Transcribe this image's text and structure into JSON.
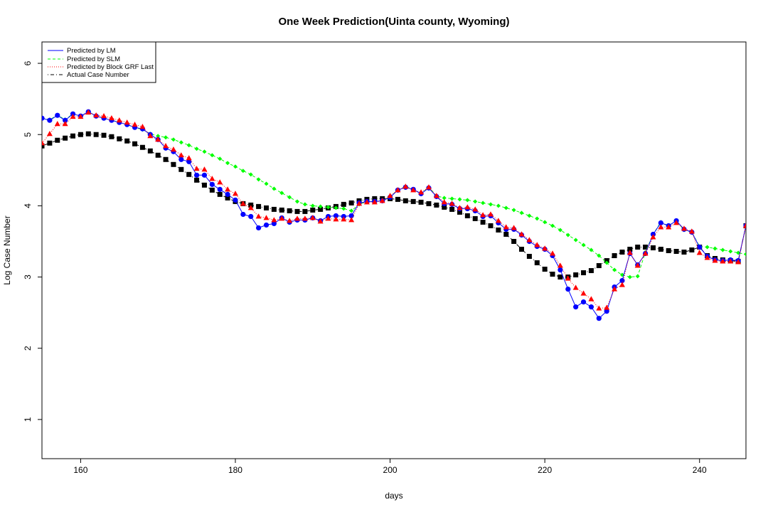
{
  "chart_data": {
    "type": "line",
    "title": "One Week Prediction(Uinta county, Wyoming)",
    "xlabel": "days",
    "ylabel": "Log Case Number",
    "xlim": [
      155,
      246
    ],
    "ylim": [
      0.45,
      6.3
    ],
    "xticks": [
      160,
      180,
      200,
      220,
      240
    ],
    "yticks": [
      1,
      2,
      3,
      4,
      5,
      6
    ],
    "grid": false,
    "legend_position": "top-left",
    "x": [
      155,
      156,
      157,
      158,
      159,
      160,
      161,
      162,
      163,
      164,
      165,
      166,
      167,
      168,
      169,
      170,
      171,
      172,
      173,
      174,
      175,
      176,
      177,
      178,
      179,
      180,
      181,
      182,
      183,
      184,
      185,
      186,
      187,
      188,
      189,
      190,
      191,
      192,
      193,
      194,
      195,
      196,
      197,
      198,
      199,
      200,
      201,
      202,
      203,
      204,
      205,
      206,
      207,
      208,
      209,
      210,
      211,
      212,
      213,
      214,
      215,
      216,
      217,
      218,
      219,
      220,
      221,
      222,
      223,
      224,
      225,
      226,
      227,
      228,
      229,
      230,
      231,
      232,
      233,
      234,
      235,
      236,
      237,
      238,
      239,
      240,
      241,
      242,
      243,
      244,
      245,
      246
    ],
    "series": [
      {
        "name": "Predicted by LM",
        "color": "#0000ff",
        "line_style": "solid",
        "marker": "circle",
        "values": [
          5.23,
          5.2,
          5.27,
          5.2,
          5.29,
          5.26,
          5.32,
          5.26,
          5.23,
          5.2,
          5.17,
          5.14,
          5.1,
          5.08,
          5.0,
          4.93,
          4.81,
          4.76,
          4.65,
          4.62,
          4.43,
          4.43,
          4.3,
          4.23,
          4.16,
          4.08,
          3.88,
          3.85,
          3.69,
          3.73,
          3.75,
          3.83,
          3.77,
          3.8,
          3.8,
          3.83,
          3.79,
          3.85,
          3.86,
          3.85,
          3.86,
          4.04,
          4.06,
          4.06,
          4.07,
          4.12,
          4.22,
          4.26,
          4.23,
          4.17,
          4.25,
          4.13,
          4.03,
          4.02,
          3.96,
          3.96,
          3.93,
          3.85,
          3.86,
          3.76,
          3.67,
          3.67,
          3.59,
          3.5,
          3.43,
          3.39,
          3.3,
          3.1,
          2.83,
          2.58,
          2.65,
          2.58,
          2.42,
          2.52,
          2.86,
          2.95,
          3.33,
          3.17,
          3.33,
          3.6,
          3.76,
          3.72,
          3.79,
          3.67,
          3.63,
          3.42,
          3.29,
          3.24,
          3.23,
          3.24,
          3.23,
          3.72
        ]
      },
      {
        "name": "Predicted by SLM",
        "color": "#00ff00",
        "line_style": "dashed",
        "marker": "diamond",
        "values": [
          5.23,
          5.21,
          5.27,
          5.21,
          5.29,
          5.26,
          5.32,
          5.26,
          5.23,
          5.2,
          5.17,
          5.14,
          5.1,
          5.07,
          5.01,
          4.98,
          4.96,
          4.93,
          4.89,
          4.85,
          4.8,
          4.76,
          4.71,
          4.66,
          4.6,
          4.55,
          4.49,
          4.44,
          4.37,
          4.31,
          4.24,
          4.18,
          4.12,
          4.06,
          4.02,
          4.0,
          3.99,
          3.98,
          3.97,
          3.96,
          3.93,
          4.02,
          4.06,
          4.06,
          4.07,
          4.13,
          4.22,
          4.27,
          4.23,
          4.17,
          4.26,
          4.14,
          4.11,
          4.1,
          4.09,
          4.08,
          4.06,
          4.04,
          4.02,
          4.0,
          3.97,
          3.94,
          3.9,
          3.86,
          3.82,
          3.77,
          3.72,
          3.66,
          3.59,
          3.52,
          3.45,
          3.38,
          3.3,
          3.2,
          3.1,
          3.03,
          3.0,
          3.01,
          3.35,
          3.6,
          3.77,
          3.72,
          3.79,
          3.66,
          3.63,
          3.43,
          3.42,
          3.4,
          3.38,
          3.36,
          3.34,
          3.32
        ]
      },
      {
        "name": "Predicted by Block GRF Last",
        "color": "#ff0000",
        "line_style": "dotted",
        "marker": "triangle",
        "values": [
          4.88,
          5.01,
          5.15,
          5.15,
          5.25,
          5.25,
          5.31,
          5.27,
          5.26,
          5.23,
          5.2,
          5.17,
          5.14,
          5.11,
          4.98,
          4.93,
          4.84,
          4.79,
          4.71,
          4.67,
          4.52,
          4.51,
          4.38,
          4.33,
          4.23,
          4.17,
          4.03,
          3.97,
          3.85,
          3.83,
          3.8,
          3.82,
          3.79,
          3.82,
          3.82,
          3.83,
          3.78,
          3.82,
          3.81,
          3.81,
          3.8,
          4.03,
          4.05,
          4.05,
          4.07,
          4.14,
          4.22,
          4.27,
          4.22,
          4.19,
          4.26,
          4.14,
          4.05,
          4.03,
          3.97,
          3.98,
          3.95,
          3.87,
          3.88,
          3.79,
          3.7,
          3.69,
          3.6,
          3.52,
          3.45,
          3.4,
          3.33,
          3.16,
          2.98,
          2.85,
          2.77,
          2.69,
          2.56,
          2.57,
          2.83,
          2.89,
          3.34,
          3.16,
          3.33,
          3.56,
          3.7,
          3.7,
          3.76,
          3.68,
          3.64,
          3.34,
          3.27,
          3.23,
          3.22,
          3.22,
          3.21,
          3.72
        ]
      },
      {
        "name": "Actual Case Number",
        "color": "#000000",
        "line_style": "dotdash",
        "marker": "square",
        "values": [
          4.84,
          4.88,
          4.92,
          4.95,
          4.98,
          5.0,
          5.01,
          5.0,
          4.99,
          4.97,
          4.94,
          4.91,
          4.87,
          4.82,
          4.77,
          4.71,
          4.65,
          4.58,
          4.51,
          4.44,
          4.36,
          4.29,
          4.22,
          4.16,
          4.11,
          4.06,
          4.03,
          4.01,
          3.99,
          3.97,
          3.95,
          3.94,
          3.93,
          3.92,
          3.92,
          3.94,
          3.95,
          3.97,
          3.99,
          4.02,
          4.04,
          4.07,
          4.09,
          4.1,
          4.1,
          4.1,
          4.09,
          4.07,
          4.06,
          4.05,
          4.03,
          4.01,
          3.98,
          3.95,
          3.91,
          3.86,
          3.82,
          3.77,
          3.72,
          3.66,
          3.6,
          3.5,
          3.39,
          3.29,
          3.2,
          3.11,
          3.04,
          3.0,
          3.0,
          3.03,
          3.06,
          3.09,
          3.16,
          3.23,
          3.3,
          3.35,
          3.39,
          3.42,
          3.42,
          3.41,
          3.39,
          3.37,
          3.36,
          3.35,
          3.38,
          3.42,
          3.3,
          3.26,
          3.24,
          3.23,
          3.22,
          3.72
        ]
      }
    ]
  }
}
